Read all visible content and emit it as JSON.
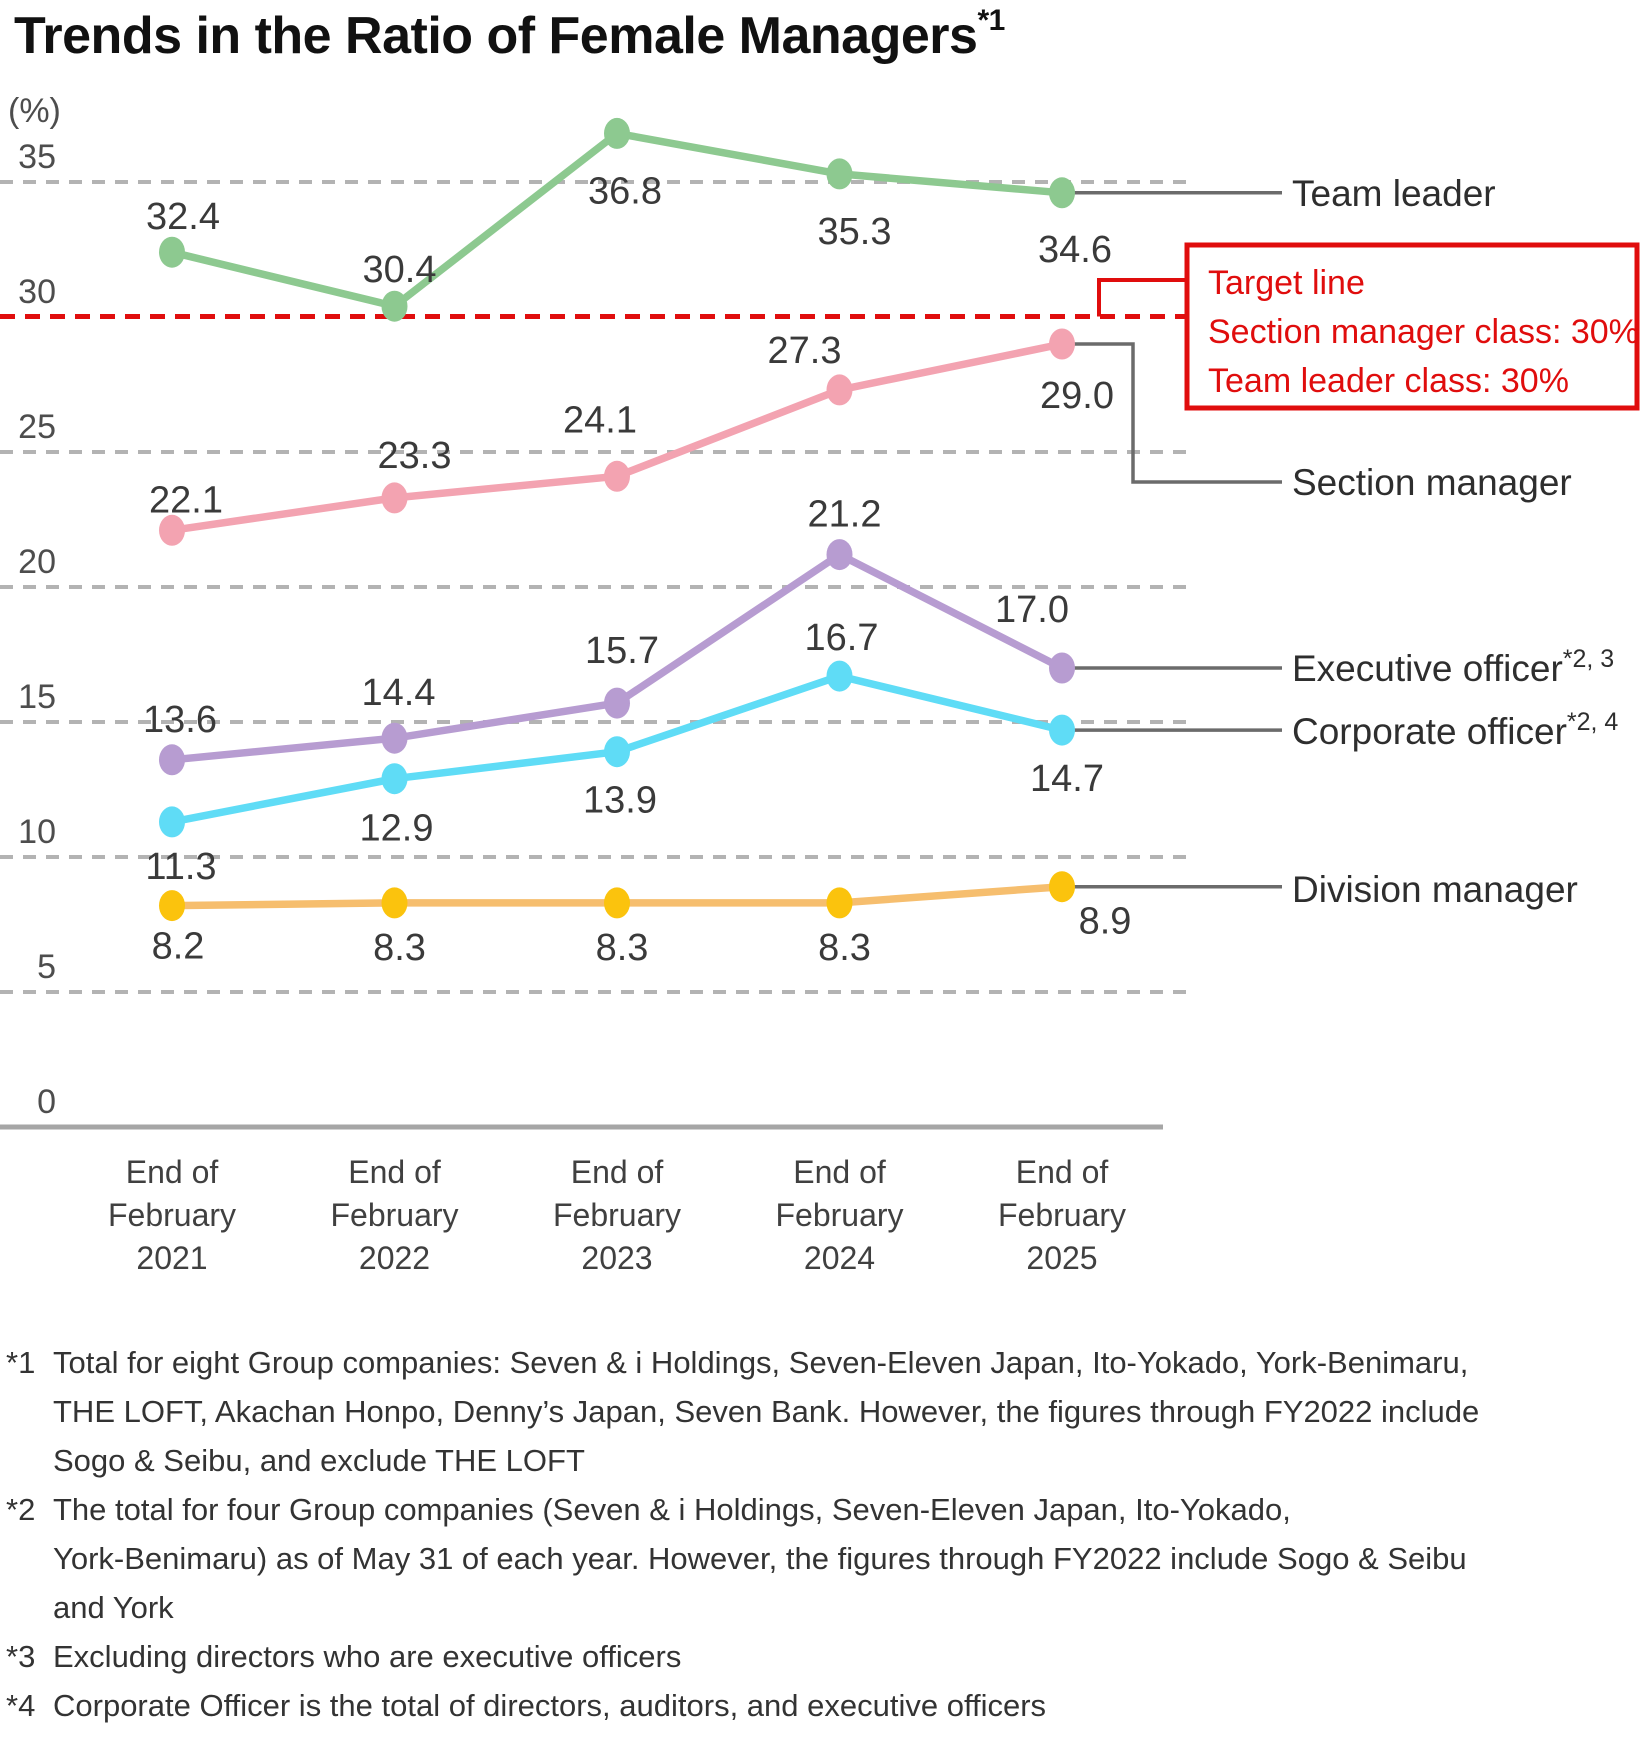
{
  "title": {
    "main": "Trends in the Ratio of Female Managers",
    "sup": "*1"
  },
  "y_axis": {
    "unit_label": "(%)",
    "ticks": [
      35,
      30,
      25,
      20,
      15,
      10,
      5,
      0
    ]
  },
  "colors": {
    "team_leader": "#8DC990",
    "section_manager": "#F3A3B1",
    "executive_officer": "#B79CD1",
    "corporate_officer": "#5FDCF6",
    "division_manager_line": "#F6BE6E",
    "division_manager_dot": "#FBC30D",
    "target_red": "#E00D0D",
    "gridline": "#B3B3B3",
    "axis": "#A6A6A6",
    "connector": "#6B6B6B",
    "data_label": "#3A3A3A",
    "tick_label": "#4D4D4D",
    "x_label": "#404040",
    "legend_label": "#2E2E2E"
  },
  "chart_data": {
    "type": "line",
    "title": "Trends in the Ratio of Female Managers",
    "ylabel": "(%)",
    "ylim": [
      0,
      37.5
    ],
    "grid": "dashed-horizontal",
    "legend_position": "right",
    "x_categories": [
      "End of\nFebruary\n2021",
      "End of\nFebruary\n2022",
      "End of\nFebruary\n2023",
      "End of\nFebruary\n2024",
      "End of\nFebruary\n2025"
    ],
    "series": [
      {
        "key": "team_leader",
        "name": "Team leader",
        "sup": "",
        "values": [
          32.4,
          30.4,
          36.8,
          35.3,
          34.6
        ],
        "labels": [
          "32.4",
          "30.4",
          "36.8",
          "35.3",
          "34.6"
        ],
        "label_offsets": [
          [
            11,
            -36
          ],
          [
            5,
            -37
          ],
          [
            8,
            57
          ],
          [
            15,
            57
          ],
          [
            13,
            56
          ]
        ]
      },
      {
        "key": "section_manager",
        "name": "Section manager",
        "sup": "",
        "values": [
          22.1,
          23.3,
          24.1,
          27.3,
          29.0
        ],
        "labels": [
          "22.1",
          "23.3",
          "24.1",
          "27.3",
          "29.0"
        ],
        "label_offsets": [
          [
            14,
            -31
          ],
          [
            20,
            -43
          ],
          [
            -17,
            -57
          ],
          [
            -35,
            -40
          ],
          [
            15,
            51
          ]
        ]
      },
      {
        "key": "executive_officer",
        "name": "Executive officer",
        "sup": "*2, 3",
        "values": [
          13.6,
          14.4,
          15.7,
          21.2,
          17.0
        ],
        "labels": [
          "13.6",
          "14.4",
          "15.7",
          "21.2",
          "17.0"
        ],
        "label_offsets": [
          [
            8,
            -41
          ],
          [
            4,
            -46
          ],
          [
            5,
            -53
          ],
          [
            5,
            -41
          ],
          [
            -30,
            -59
          ]
        ]
      },
      {
        "key": "corporate_officer",
        "name": "Corporate officer",
        "sup": "*2, 4",
        "values": [
          11.3,
          12.9,
          13.9,
          16.7,
          14.7
        ],
        "labels": [
          "11.3",
          "12.9",
          "13.9",
          "16.7",
          "14.7"
        ],
        "label_offsets": [
          [
            9,
            44
          ],
          [
            2,
            49
          ],
          [
            3,
            48
          ],
          [
            2,
            -39
          ],
          [
            5,
            48
          ]
        ]
      },
      {
        "key": "division_manager",
        "name": "Division manager",
        "sup": "",
        "values": [
          8.2,
          8.3,
          8.3,
          8.3,
          8.9
        ],
        "labels": [
          "8.2",
          "8.3",
          "8.3",
          "8.3",
          "8.9"
        ],
        "label_offsets": [
          [
            6,
            40
          ],
          [
            5,
            44
          ],
          [
            5,
            44
          ],
          [
            5,
            44
          ],
          [
            43,
            34
          ]
        ]
      }
    ],
    "target_line": {
      "value": 30,
      "box_lines": [
        "Target line",
        "Section manager class: 30%",
        "Team leader class: 30%"
      ]
    }
  },
  "footnotes": [
    {
      "marker": "*1",
      "text": "Total for eight Group companies: Seven & i Holdings, Seven-Eleven Japan, Ito-Yokado, York-Benimaru,\nTHE LOFT, Akachan Honpo, Denny’s Japan, Seven Bank. However, the figures through FY2022 include\nSogo & Seibu, and exclude THE LOFT"
    },
    {
      "marker": "*2",
      "text": "The total for four Group companies (Seven & i Holdings, Seven-Eleven Japan, Ito-Yokado,\nYork-Benimaru) as of May 31 of each year. However, the figures through FY2022 include Sogo & Seibu\nand York"
    },
    {
      "marker": "*3",
      "text": "Excluding directors who are executive officers"
    },
    {
      "marker": "*4",
      "text": "Corporate Officer is the total of directors, auditors, and executive officers"
    }
  ]
}
